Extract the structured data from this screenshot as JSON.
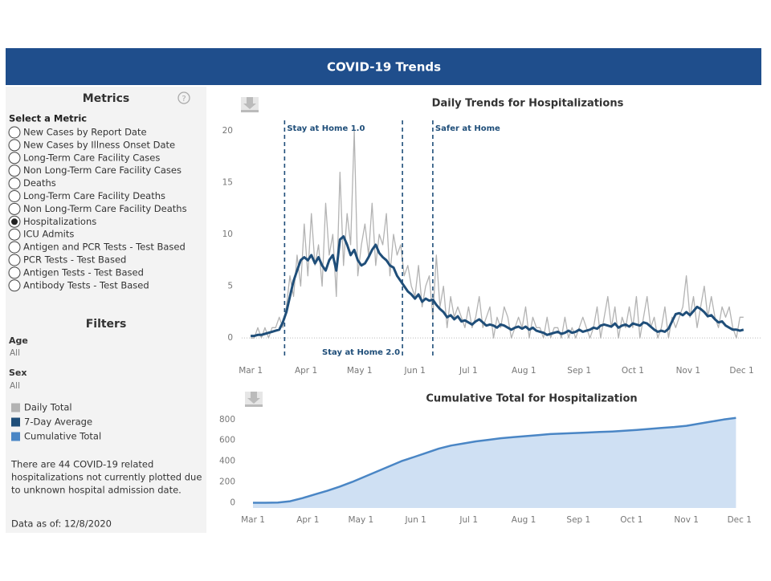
{
  "header": {
    "title": "COVID-19 Trends"
  },
  "sidebar": {
    "metrics": {
      "title": "Metrics",
      "label": "Select a Metric",
      "selected": 8,
      "options": [
        "New Cases by Report Date",
        "New Cases by Illness Onset Date",
        "Long-Term Care Facility Cases",
        "Non Long-Term Care Facility Cases",
        "Deaths",
        "Long-Term Care Facility Deaths",
        "Non Long-Term Care Facility Deaths",
        "Hospitalizations",
        "ICU Admits",
        "Antigen and PCR Tests - Test Based",
        "PCR Tests - Test Based",
        "Antigen Tests - Test Based",
        "Antibody Tests - Test Based"
      ]
    },
    "filters": {
      "title": "Filters",
      "items": [
        {
          "label": "Age",
          "value": "All"
        },
        {
          "label": "Sex",
          "value": "All"
        }
      ]
    },
    "note": [
      "There are 44 COVID-19 related",
      "hospitalizations not currently plotted due",
      "to unknown hospital admission date."
    ],
    "data_as_of": "Data as of: 12/8/2020"
  },
  "chart_data": [
    {
      "type": "line",
      "title": "Daily Trends for Hospitalizations",
      "xlim": [
        -5,
        286
      ],
      "ylim": [
        -2,
        21
      ],
      "yticks": [
        0,
        5,
        10,
        15,
        20
      ],
      "xticks": [
        {
          "value": 0,
          "label": "Mar 1"
        },
        {
          "value": 31,
          "label": "Apr 1"
        },
        {
          "value": 61,
          "label": "May 1"
        },
        {
          "value": 92,
          "label": "Jun 1"
        },
        {
          "value": 122,
          "label": "Jul 1"
        },
        {
          "value": 153,
          "label": "Aug 1"
        },
        {
          "value": 184,
          "label": "Sep 1"
        },
        {
          "value": 214,
          "label": "Oct 1"
        },
        {
          "value": 245,
          "label": "Nov 1"
        },
        {
          "value": 275,
          "label": "Dec 1"
        }
      ],
      "annotations": [
        {
          "x": 19,
          "label": "Stay at Home 1.0"
        },
        {
          "x": 85,
          "label": "Stay at Home 2.0"
        },
        {
          "x": 102,
          "label": "Safer at Home"
        }
      ],
      "x": [
        0,
        2,
        4,
        6,
        8,
        10,
        12,
        14,
        16,
        18,
        20,
        22,
        24,
        26,
        28,
        30,
        32,
        34,
        36,
        38,
        40,
        42,
        44,
        46,
        48,
        50,
        52,
        54,
        56,
        58,
        60,
        62,
        64,
        66,
        68,
        70,
        72,
        74,
        76,
        78,
        80,
        82,
        84,
        86,
        88,
        90,
        92,
        94,
        96,
        98,
        100,
        102,
        104,
        106,
        108,
        110,
        112,
        114,
        116,
        118,
        120,
        122,
        124,
        126,
        128,
        130,
        132,
        134,
        136,
        138,
        140,
        142,
        144,
        146,
        148,
        150,
        152,
        154,
        156,
        158,
        160,
        162,
        164,
        166,
        168,
        170,
        172,
        174,
        176,
        178,
        180,
        182,
        184,
        186,
        188,
        190,
        192,
        194,
        196,
        198,
        200,
        202,
        204,
        206,
        208,
        210,
        212,
        214,
        216,
        218,
        220,
        222,
        224,
        226,
        228,
        230,
        232,
        234,
        236,
        238,
        240,
        242,
        244,
        246,
        248,
        250,
        252,
        254,
        256,
        258,
        260,
        262,
        264,
        266,
        268,
        270,
        272,
        274,
        276
      ],
      "series": [
        {
          "name": "Daily Total",
          "color": "#b3b3b3",
          "width": 1.3,
          "values": [
            0,
            0,
            1,
            0,
            1,
            0,
            1,
            1,
            2,
            1,
            3,
            6,
            4,
            8,
            5,
            11,
            6,
            12,
            7,
            9,
            5,
            13,
            8,
            10,
            4,
            16,
            7,
            12,
            9,
            20,
            6,
            9,
            11,
            8,
            13,
            7,
            10,
            9,
            12,
            6,
            10,
            8,
            9,
            6,
            7,
            5,
            4,
            7,
            3,
            5,
            6,
            2,
            8,
            3,
            5,
            1,
            4,
            2,
            3,
            2,
            1,
            3,
            1,
            2,
            4,
            1,
            2,
            3,
            0,
            2,
            1,
            3,
            2,
            0,
            1,
            2,
            1,
            3,
            0,
            2,
            1,
            1,
            0,
            2,
            0,
            1,
            1,
            0,
            2,
            0,
            1,
            0,
            1,
            2,
            1,
            0,
            1,
            3,
            0,
            2,
            4,
            1,
            3,
            0,
            2,
            1,
            3,
            1,
            4,
            0,
            2,
            4,
            1,
            2,
            0,
            1,
            3,
            0,
            2,
            1,
            2,
            3,
            6,
            2,
            4,
            1,
            3,
            5,
            2,
            4,
            2,
            1,
            3,
            2,
            3,
            1,
            0,
            2,
            2
          ]
        },
        {
          "name": "7-Day Average",
          "color": "#1f4e79",
          "width": 3,
          "values": [
            0.2,
            0.2,
            0.3,
            0.3,
            0.4,
            0.5,
            0.6,
            0.7,
            0.8,
            1.5,
            2.5,
            4,
            5.5,
            6.5,
            7.5,
            7.8,
            7.5,
            8,
            7.2,
            7.8,
            7,
            6.5,
            7.5,
            8,
            6.5,
            9.5,
            9.8,
            9,
            8,
            8.5,
            7.5,
            7,
            7.2,
            7.8,
            8.5,
            9,
            8.2,
            7.8,
            7.5,
            7,
            6.8,
            6,
            5.5,
            5,
            4.5,
            4.2,
            3.8,
            4.2,
            3.5,
            3.8,
            3.6,
            3.7,
            3.2,
            2.8,
            2.5,
            2,
            2.2,
            1.8,
            2.1,
            1.6,
            1.7,
            1.5,
            1.3,
            1.6,
            1.8,
            1.5,
            1.2,
            1.3,
            1.2,
            1,
            1.3,
            1.2,
            1,
            0.8,
            1,
            1.1,
            0.9,
            1.1,
            0.8,
            1,
            0.7,
            0.6,
            0.5,
            0.3,
            0.4,
            0.5,
            0.6,
            0.4,
            0.5,
            0.7,
            0.5,
            0.6,
            0.8,
            0.6,
            0.7,
            0.8,
            1,
            0.9,
            1.2,
            1.3,
            1.2,
            1.1,
            1.4,
            1,
            1.2,
            1.3,
            1.1,
            1.4,
            1.3,
            1.2,
            1.5,
            1.4,
            1.1,
            0.8,
            0.6,
            0.7,
            0.6,
            0.9,
            1.6,
            2.3,
            2.4,
            2.2,
            2.5,
            2.2,
            2.6,
            3,
            2.8,
            2.5,
            2.1,
            2.2,
            1.8,
            1.5,
            1.6,
            1.2,
            1,
            0.8,
            0.8,
            0.7,
            0.8
          ]
        }
      ]
    },
    {
      "type": "area",
      "title": "Cumulative Total for Hospitalization",
      "xlim": [
        -5,
        286
      ],
      "ylim": [
        -50,
        860
      ],
      "yticks": [
        0,
        200,
        400,
        600,
        800
      ],
      "xticks": [
        {
          "value": 0,
          "label": "Mar 1"
        },
        {
          "value": 31,
          "label": "Apr 1"
        },
        {
          "value": 61,
          "label": "May 1"
        },
        {
          "value": 92,
          "label": "Jun 1"
        },
        {
          "value": 122,
          "label": "Jul 1"
        },
        {
          "value": 153,
          "label": "Aug 1"
        },
        {
          "value": 184,
          "label": "Sep 1"
        },
        {
          "value": 214,
          "label": "Oct 1"
        },
        {
          "value": 245,
          "label": "Nov 1"
        },
        {
          "value": 275,
          "label": "Dec 1"
        }
      ],
      "x": [
        0,
        7,
        14,
        21,
        28,
        35,
        42,
        49,
        56,
        63,
        70,
        77,
        84,
        91,
        98,
        105,
        112,
        119,
        126,
        133,
        140,
        147,
        154,
        161,
        168,
        175,
        182,
        189,
        196,
        203,
        210,
        217,
        224,
        231,
        238,
        245,
        252,
        259,
        266,
        273
      ],
      "series": [
        {
          "name": "Cumulative Total",
          "color": "#4a86c5",
          "fill": "#cfe0f3",
          "values": [
            0,
            0,
            2,
            15,
            45,
            80,
            115,
            155,
            200,
            250,
            300,
            350,
            400,
            440,
            480,
            520,
            550,
            570,
            590,
            605,
            620,
            630,
            640,
            650,
            660,
            665,
            670,
            675,
            680,
            685,
            692,
            700,
            710,
            720,
            728,
            740,
            760,
            780,
            800,
            815
          ]
        }
      ]
    }
  ]
}
